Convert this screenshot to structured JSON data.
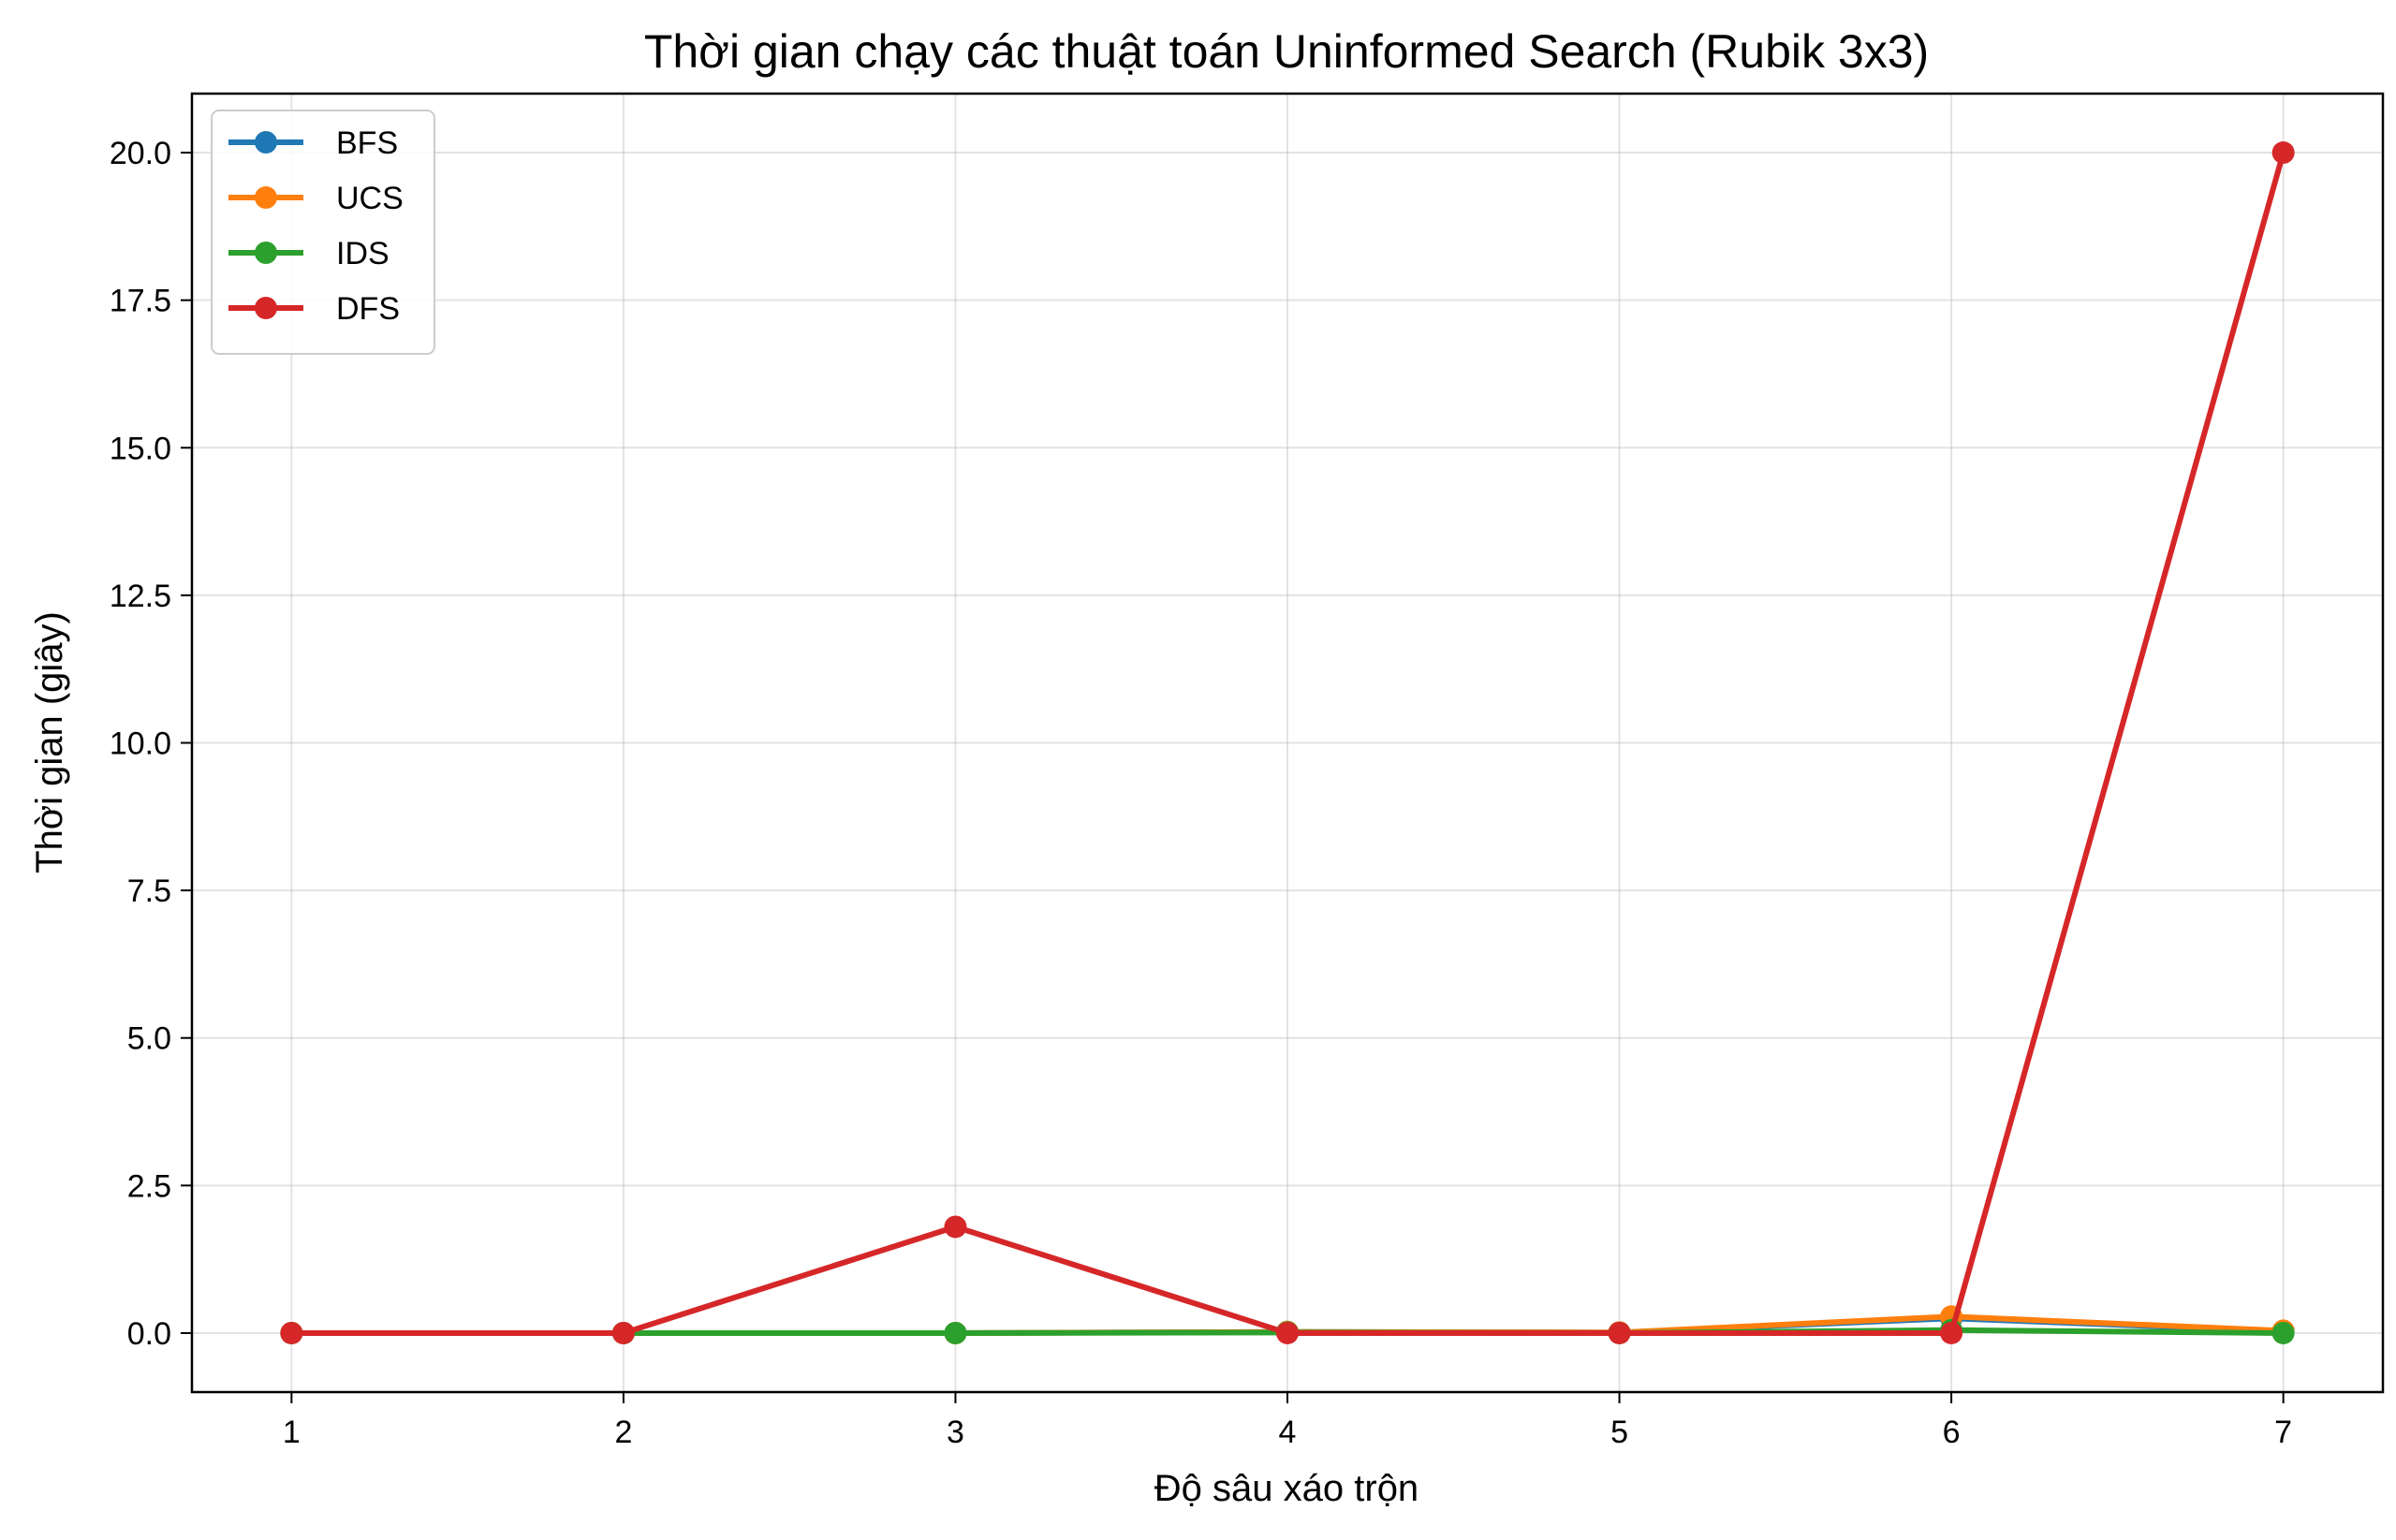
{
  "chart_data": {
    "type": "line",
    "title": "Thời gian chạy các thuật toán Uninformed Search (Rubik 3x3)",
    "xlabel": "Độ sâu xáo trộn",
    "ylabel": "Thời gian (giây)",
    "x": [
      1,
      2,
      3,
      4,
      5,
      6,
      7
    ],
    "xlim": [
      0.7,
      7.3
    ],
    "ylim": [
      -1.0,
      21.0
    ],
    "xticks": [
      "1",
      "2",
      "3",
      "4",
      "5",
      "6",
      "7"
    ],
    "yticks": [
      "0.0",
      "2.5",
      "5.0",
      "7.5",
      "10.0",
      "12.5",
      "15.0",
      "17.5",
      "20.0"
    ],
    "grid": true,
    "legend_position": "top-left",
    "series": [
      {
        "name": "BFS",
        "color": "#1f77b4",
        "values": [
          0.0,
          0.0,
          0.0,
          0.02,
          0.01,
          0.25,
          0.03
        ]
      },
      {
        "name": "UCS",
        "color": "#ff7f0e",
        "values": [
          0.0,
          0.0,
          0.0,
          0.02,
          0.01,
          0.28,
          0.04
        ]
      },
      {
        "name": "IDS",
        "color": "#2ca02c",
        "values": [
          0.0,
          0.0,
          0.0,
          0.01,
          0.0,
          0.05,
          0.0
        ]
      },
      {
        "name": "DFS",
        "color": "#d62728",
        "values": [
          0.0,
          0.0,
          1.8,
          0.0,
          0.0,
          0.0,
          20.0
        ]
      }
    ]
  }
}
